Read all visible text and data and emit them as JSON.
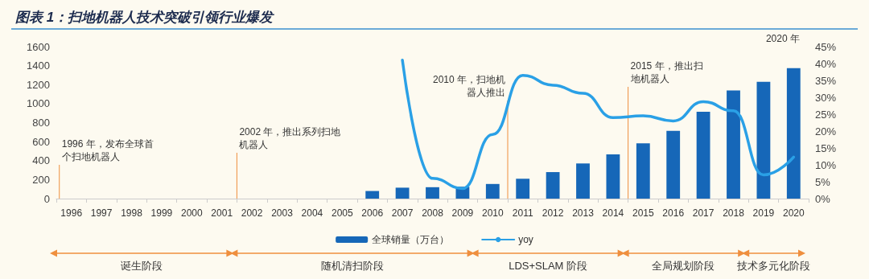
{
  "chart_data": {
    "type": "bar",
    "title": "图表 1：扫地机器人技术突破引领行业爆发",
    "categories": [
      "1996",
      "1997",
      "1998",
      "1999",
      "2000",
      "2001",
      "2002",
      "2003",
      "2004",
      "2005",
      "2006",
      "2007",
      "2008",
      "2009",
      "2010",
      "2011",
      "2012",
      "2013",
      "2014",
      "2015",
      "2016",
      "2017",
      "2018",
      "2019",
      "2020"
    ],
    "series": [
      {
        "name": "全球销量（万台）",
        "color": "#1667b8",
        "values": [
          null,
          null,
          null,
          null,
          null,
          null,
          null,
          null,
          null,
          null,
          80,
          115,
          120,
          125,
          154,
          209,
          279,
          370,
          466,
          583,
          713,
          915,
          1139,
          1230,
          1374
        ]
      },
      {
        "name": "yoy",
        "type": "line",
        "axis": "y2",
        "color": "#2aa0e6",
        "values": [
          null,
          null,
          null,
          null,
          null,
          null,
          null,
          null,
          null,
          null,
          null,
          41,
          6,
          3,
          19,
          36.5,
          33.6,
          31.2,
          24,
          24.5,
          23,
          28.7,
          26,
          7,
          12.3
        ]
      }
    ],
    "ylim": [
      0,
      1600
    ],
    "yticks": [
      0,
      200,
      400,
      600,
      800,
      1000,
      1200,
      1400,
      1600
    ],
    "y2lim": [
      0,
      45
    ],
    "y2ticks": [
      {
        "value": 0,
        "label": "0%"
      },
      {
        "value": 5,
        "label": "5%"
      },
      {
        "value": 10,
        "label": "10%"
      },
      {
        "value": 15,
        "label": "15%"
      },
      {
        "value": 20,
        "label": "20%"
      },
      {
        "value": 25,
        "label": "25%"
      },
      {
        "value": 30,
        "label": "30%"
      },
      {
        "value": 35,
        "label": "35%"
      },
      {
        "value": 40,
        "label": "40%"
      },
      {
        "value": 45,
        "label": "45%"
      }
    ],
    "annotations": [
      "1996 年，发布全球首个扫地机器人",
      "2002 年，推出系列扫地机器人",
      "2010 年，扫地机器人推出",
      "2015 年，推出扫地机器人",
      "2020 年",
      "诞生阶段",
      "随机清扫阶段",
      "LDS+SLAM 阶段",
      "全局规划阶段",
      "技术多元化阶段"
    ],
    "legend": "bottom",
    "grid": false,
    "marker": "none"
  }
}
